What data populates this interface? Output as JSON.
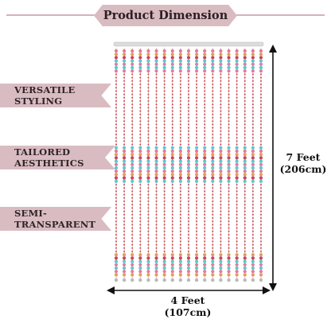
{
  "header": {
    "title": "Product Dimension"
  },
  "features": [
    {
      "label": "VERSATILE STYLING"
    },
    {
      "label": "TAILORED AESTHETICS"
    },
    {
      "label": "SEMI-TRANSPARENT"
    }
  ],
  "dimensions": {
    "height": {
      "feet": "7 Feet",
      "cm": "(206cm)"
    },
    "width": {
      "feet": "4 Feet",
      "cm": "(107cm)"
    }
  },
  "colors": {
    "accent": "#d9bcc2",
    "header_line": "#d5b2b8",
    "bead_red": "#c9465a",
    "bead_teal": "#5fc6cd",
    "bead_pink": "#e27aa2",
    "bead_orange": "#e59b58",
    "strand": "#d7b7a6"
  }
}
